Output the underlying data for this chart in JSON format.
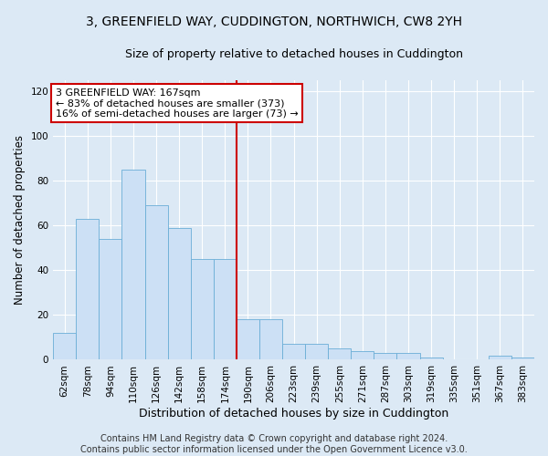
{
  "title": "3, GREENFIELD WAY, CUDDINGTON, NORTHWICH, CW8 2YH",
  "subtitle": "Size of property relative to detached houses in Cuddington",
  "xlabel": "Distribution of detached houses by size in Cuddington",
  "ylabel": "Number of detached properties",
  "bar_labels": [
    "62sqm",
    "78sqm",
    "94sqm",
    "110sqm",
    "126sqm",
    "142sqm",
    "158sqm",
    "174sqm",
    "190sqm",
    "206sqm",
    "223sqm",
    "239sqm",
    "255sqm",
    "271sqm",
    "287sqm",
    "303sqm",
    "319sqm",
    "335sqm",
    "351sqm",
    "367sqm",
    "383sqm"
  ],
  "bar_values": [
    12,
    63,
    54,
    85,
    69,
    59,
    45,
    45,
    18,
    18,
    7,
    7,
    5,
    4,
    3,
    3,
    1,
    0,
    0,
    2,
    1
  ],
  "bar_color": "#cce0f5",
  "bar_edge_color": "#6aaed6",
  "vline_x": 7.5,
  "vline_color": "#cc0000",
  "annotation_text": "3 GREENFIELD WAY: 167sqm\n← 83% of detached houses are smaller (373)\n16% of semi-detached houses are larger (73) →",
  "annotation_box_color": "#ffffff",
  "annotation_box_edge": "#cc0000",
  "ylim": [
    0,
    125
  ],
  "yticks": [
    0,
    20,
    40,
    60,
    80,
    100,
    120
  ],
  "footer_text": "Contains HM Land Registry data © Crown copyright and database right 2024.\nContains public sector information licensed under the Open Government Licence v3.0.",
  "background_color": "#dce9f5",
  "plot_background": "#dce9f5",
  "title_fontsize": 10,
  "subtitle_fontsize": 9,
  "xlabel_fontsize": 9,
  "ylabel_fontsize": 8.5,
  "tick_fontsize": 7.5,
  "footer_fontsize": 7,
  "ann_fontsize": 8
}
